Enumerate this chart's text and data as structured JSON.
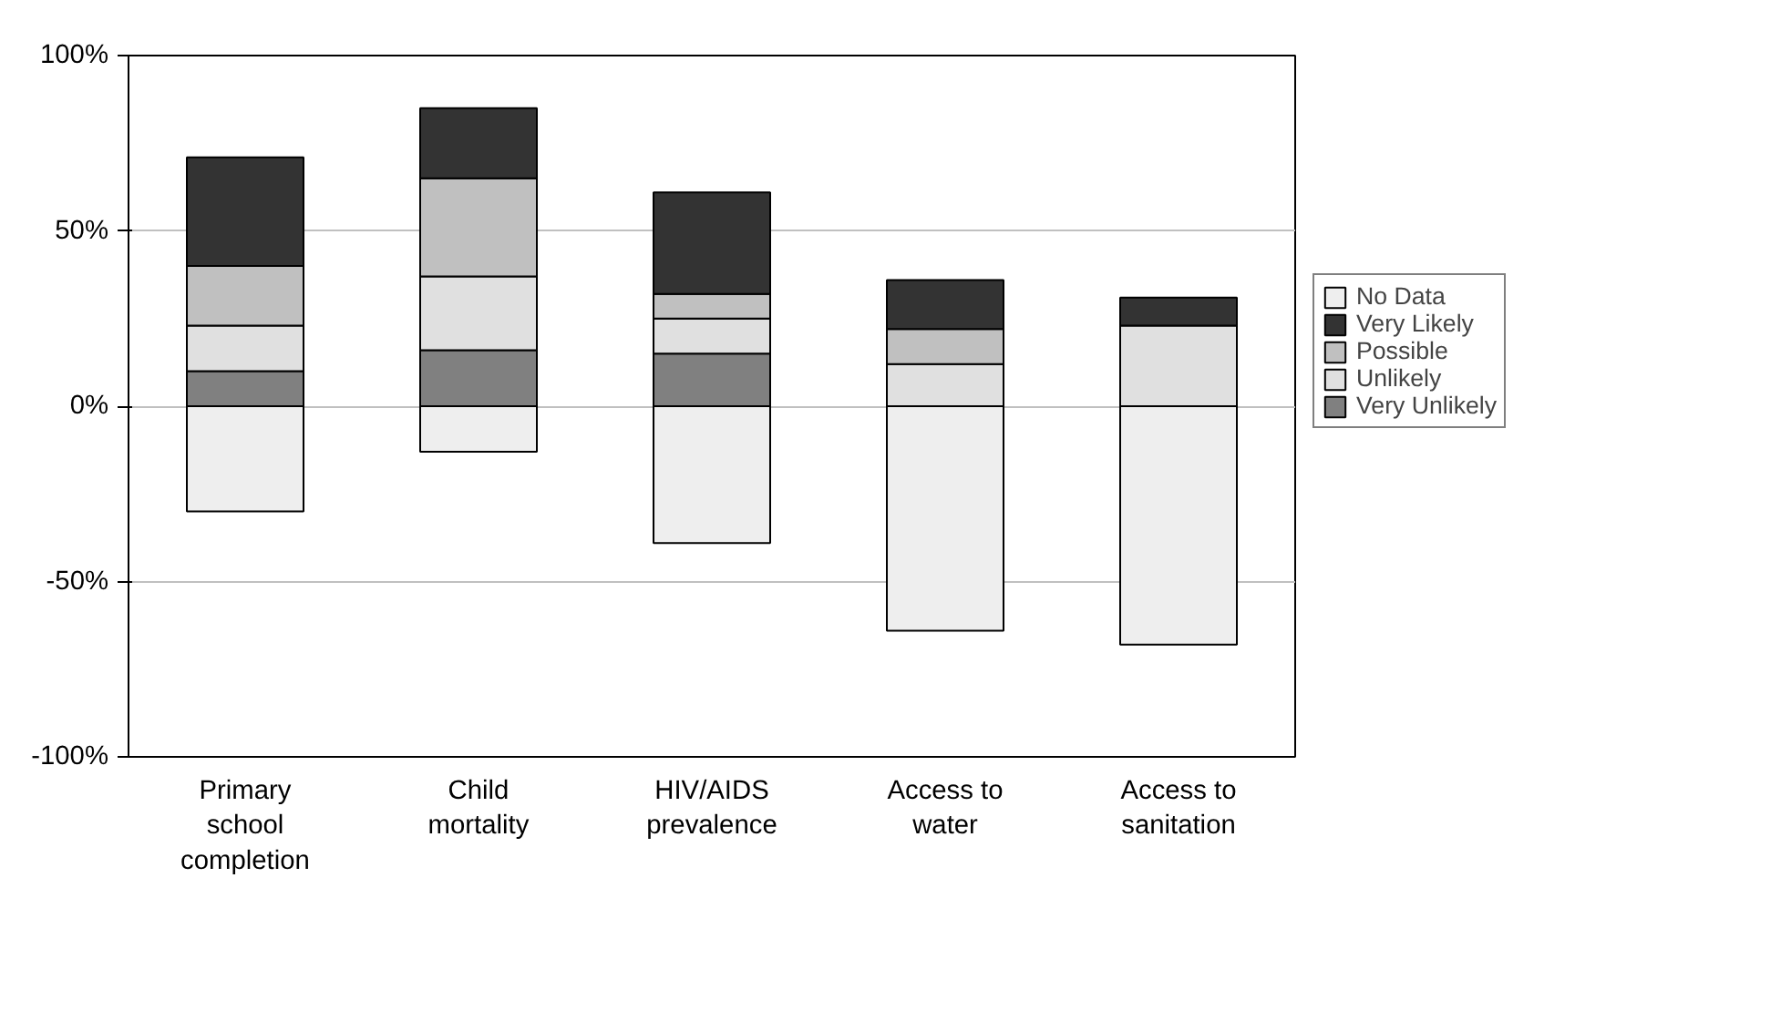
{
  "chart_data": {
    "type": "bar",
    "stacked": true,
    "categories": [
      "Primary school completion",
      "Child mortality",
      "HIV/AIDS prevalence",
      "Access to water",
      "Access to sanitation"
    ],
    "series": [
      {
        "name": "Very Unlikely",
        "color": "#808080",
        "values": [
          10,
          16,
          15,
          null,
          null
        ]
      },
      {
        "name": "Unlikely",
        "color": "#e0e0e0",
        "values": [
          13,
          21,
          10,
          12,
          23
        ]
      },
      {
        "name": "Possible",
        "color": "#c0c0c0",
        "values": [
          17,
          28,
          7,
          10,
          null
        ]
      },
      {
        "name": "Very Likely",
        "color": "#333333",
        "values": [
          31,
          20,
          29,
          14,
          8
        ]
      },
      {
        "name": "No Data",
        "color": "#eeeeee",
        "values": [
          -30,
          -13,
          -39,
          -64,
          -68
        ]
      }
    ],
    "ylim": [
      -100,
      100
    ],
    "yticks": [
      {
        "value": -100,
        "label": "-100%"
      },
      {
        "value": -50,
        "label": "-50%"
      },
      {
        "value": 0,
        "label": "0%"
      },
      {
        "value": 50,
        "label": "50%"
      },
      {
        "value": 100,
        "label": "100%"
      }
    ],
    "grid": "y",
    "legend": "right"
  }
}
